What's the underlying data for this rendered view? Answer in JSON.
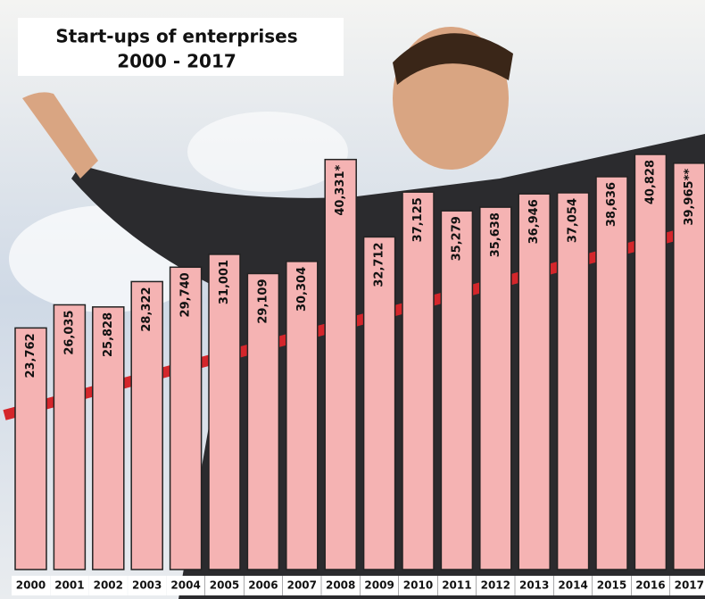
{
  "chart_data": {
    "type": "bar",
    "title": "Start-ups of enterprises",
    "subtitle": "2000 - 2017",
    "categories": [
      "2000",
      "2001",
      "2002",
      "2003",
      "2004",
      "2005",
      "2006",
      "2007",
      "2008",
      "2009",
      "2010",
      "2011",
      "2012",
      "2013",
      "2014",
      "2015",
      "2016",
      "2017"
    ],
    "values": [
      23762,
      26035,
      25828,
      28322,
      29740,
      31001,
      29109,
      30304,
      40331,
      32712,
      37125,
      35279,
      35638,
      36946,
      37054,
      38636,
      40828,
      39965
    ],
    "value_labels": [
      "23,762",
      "26,035",
      "25,828",
      "28,322",
      "29,740",
      "31,001",
      "29,109",
      "30,304",
      "40,331*",
      "32,712",
      "37,125",
      "35,279",
      "35,638",
      "36,946",
      "37,054",
      "38,636",
      "40,828",
      "39,965**"
    ],
    "color": "#f5b3b3"
  }
}
